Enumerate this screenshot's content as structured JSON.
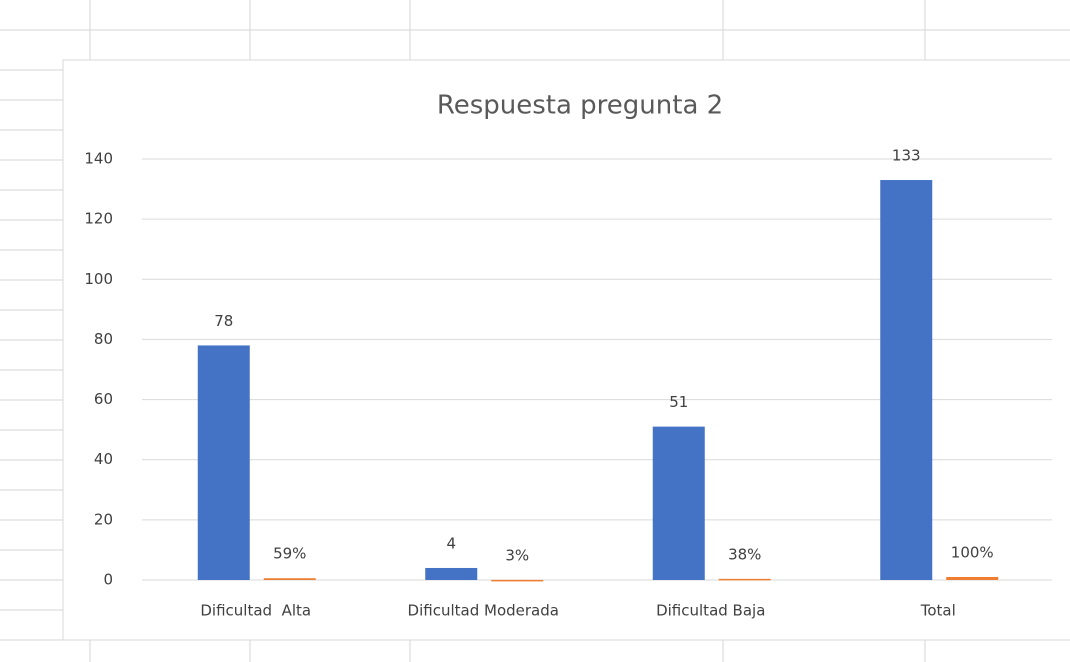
{
  "chart_data": {
    "type": "bar",
    "title": "Respuesta pregunta 2",
    "categories": [
      "Dificultad  Alta",
      "Dificultad Moderada",
      "Dificultad Baja",
      "Total"
    ],
    "series": [
      {
        "color": "#4472c4",
        "values": [
          78,
          4,
          51,
          133
        ]
      },
      {
        "color": "#ed7d31",
        "values": [
          0.59,
          0.03,
          0.38,
          1
        ],
        "value_labels": [
          "59%",
          "3%",
          "38%",
          "100%"
        ]
      }
    ],
    "ylim": [
      0,
      140
    ],
    "yticks": [
      0,
      20,
      40,
      60,
      80,
      100,
      120,
      140
    ],
    "grid": true
  }
}
